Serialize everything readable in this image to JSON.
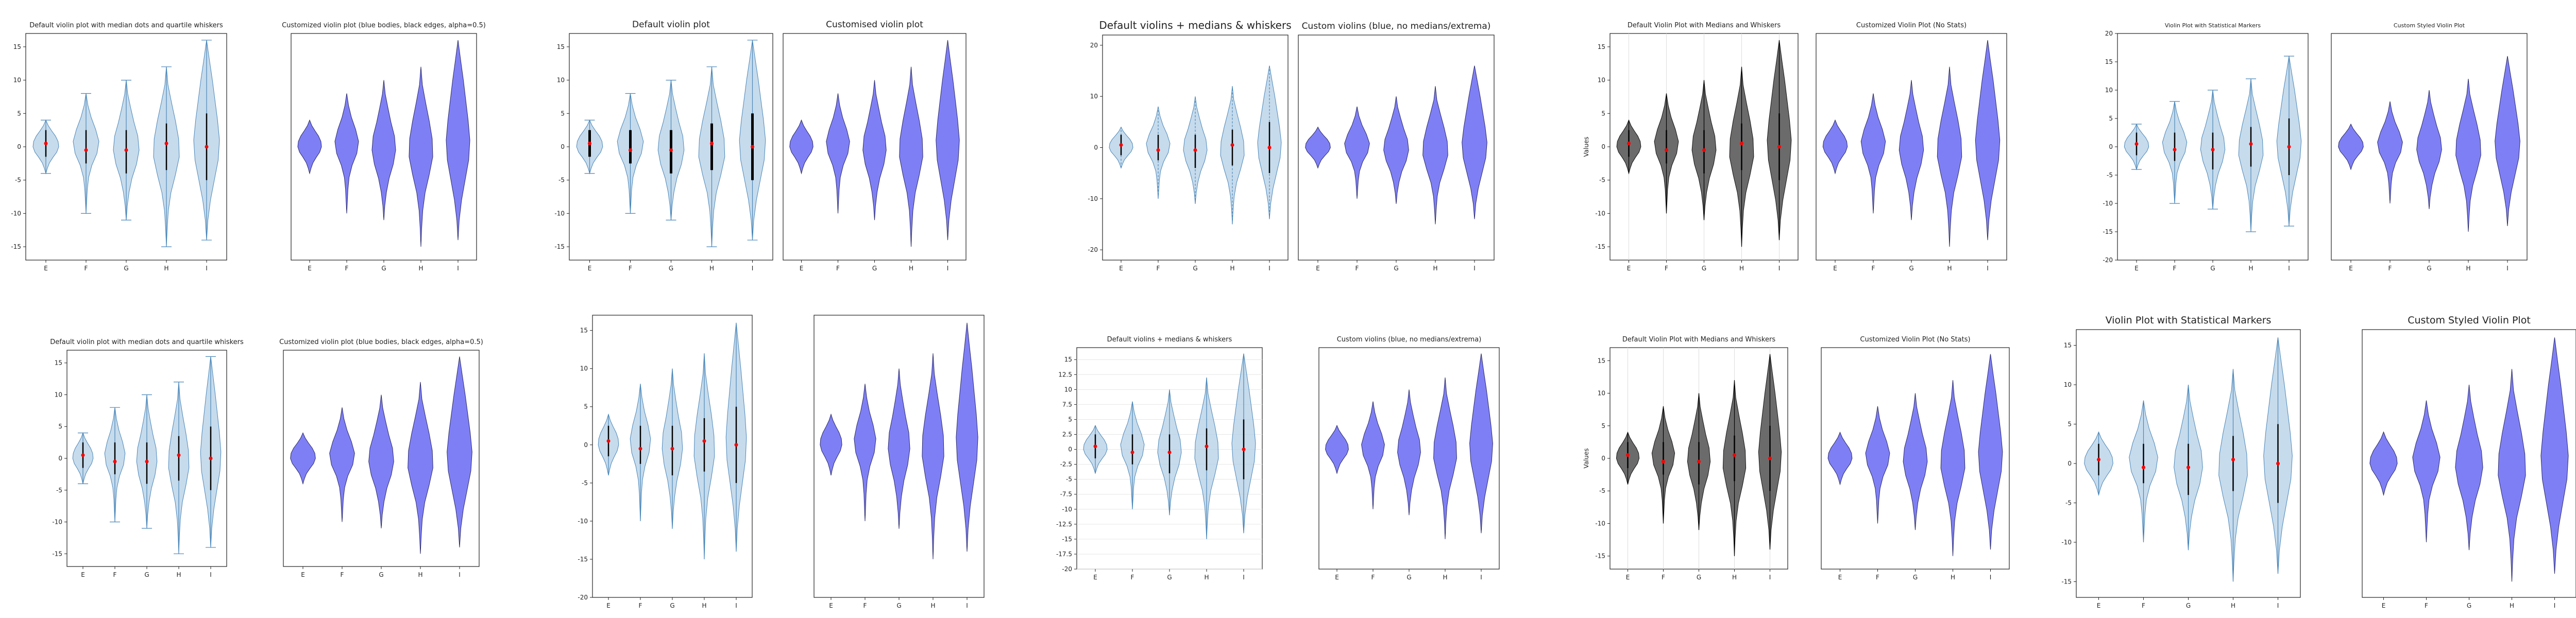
{
  "style": {
    "default_fill": "#b3cfe5",
    "default_edge": "#4a86b8",
    "custom_fill": "#7f7ff5",
    "custom_edge": "#2a2a6a",
    "dark_fill": "#6b6b6b",
    "median_color": "#ff0000",
    "whisker_color": "#000000"
  },
  "chart_data": [
    {
      "title": "Default violin plot with median dots and quartile whiskers",
      "type": "violin",
      "categories": [
        "E",
        "F",
        "G",
        "H",
        "I"
      ],
      "ylim": [
        -17,
        17
      ],
      "yticks": [
        -15,
        -10,
        -5,
        0,
        5,
        10,
        15
      ],
      "ylabel": ""
    },
    {
      "title": "Customized violin plot (blue bodies, black edges, alpha=0.5)",
      "type": "violin",
      "categories": [
        "E",
        "F",
        "G",
        "H",
        "I"
      ],
      "ylim": [
        -17,
        17
      ],
      "yticks": [],
      "ylabel": ""
    },
    {
      "title": "Default violin plot",
      "type": "violin",
      "categories": [
        "E",
        "F",
        "G",
        "H",
        "I"
      ],
      "ylim": [
        -17,
        17
      ],
      "yticks": [
        -15,
        -10,
        -5,
        0,
        5,
        10,
        15
      ],
      "ylabel": ""
    },
    {
      "title": "Customised violin plot",
      "type": "violin",
      "categories": [
        "E",
        "F",
        "G",
        "H",
        "I"
      ],
      "ylim": [
        -17,
        17
      ],
      "yticks": [],
      "ylabel": ""
    },
    {
      "title": "Default violins + medians & whiskers",
      "type": "violin",
      "categories": [
        "E",
        "F",
        "G",
        "H",
        "I"
      ],
      "ylim": [
        -22,
        22
      ],
      "yticks": [
        -20,
        -10,
        0,
        10,
        20
      ],
      "ylabel": ""
    },
    {
      "title": "Custom violins (blue, no medians/extrema)",
      "type": "violin",
      "categories": [
        "E",
        "F",
        "G",
        "H",
        "I"
      ],
      "ylim": [
        -22,
        22
      ],
      "yticks": [],
      "ylabel": ""
    },
    {
      "title": "Default Violin Plot with Medians and Whiskers",
      "type": "violin",
      "categories": [
        "E",
        "F",
        "G",
        "H",
        "I"
      ],
      "ylim": [
        -17,
        17
      ],
      "yticks": [
        -15,
        -10,
        -5,
        0,
        5,
        10,
        15
      ],
      "ylabel": "Values"
    },
    {
      "title": "Customized Violin Plot (No Stats)",
      "type": "violin",
      "categories": [
        "E",
        "F",
        "G",
        "H",
        "I"
      ],
      "ylim": [
        -17,
        17
      ],
      "yticks": [],
      "ylabel": ""
    },
    {
      "title": "Violin Plot with Statistical Markers",
      "type": "violin",
      "categories": [
        "E",
        "F",
        "G",
        "H",
        "I"
      ],
      "ylim": [
        -20,
        20
      ],
      "yticks": [
        -20,
        -15,
        -10,
        -5,
        0,
        5,
        10,
        15,
        20
      ],
      "ylabel": ""
    },
    {
      "title": "Custom Styled Violin Plot",
      "type": "violin",
      "categories": [
        "E",
        "F",
        "G",
        "H",
        "I"
      ],
      "ylim": [
        -20,
        20
      ],
      "yticks": [],
      "ylabel": ""
    },
    {
      "title": "Default violin plot with median dots and quartile whiskers",
      "type": "violin",
      "categories": [
        "E",
        "F",
        "G",
        "H",
        "I"
      ],
      "ylim": [
        -17,
        17
      ],
      "yticks": [
        -15,
        -10,
        -5,
        0,
        5,
        10,
        15
      ],
      "ylabel": ""
    },
    {
      "title": "Customized violin plot (blue bodies, black edges, alpha=0.5)",
      "type": "violin",
      "categories": [
        "E",
        "F",
        "G",
        "H",
        "I"
      ],
      "ylim": [
        -17,
        17
      ],
      "yticks": [],
      "ylabel": ""
    },
    {
      "title": "",
      "type": "violin",
      "categories": [
        "E",
        "F",
        "G",
        "H",
        "I"
      ],
      "ylim": [
        -20,
        17
      ],
      "yticks": [
        -20,
        -15,
        -10,
        -5,
        0,
        5,
        10,
        15
      ],
      "ylabel": ""
    },
    {
      "title": "",
      "type": "violin",
      "categories": [
        "E",
        "F",
        "G",
        "H",
        "I"
      ],
      "ylim": [
        -20,
        17
      ],
      "yticks": [],
      "ylabel": ""
    },
    {
      "title": "Default violins + medians & whiskers",
      "type": "violin",
      "categories": [
        "E",
        "F",
        "G",
        "H",
        "I"
      ],
      "ylim": [
        -20,
        17
      ],
      "yticks": [
        -20,
        -17.5,
        -15,
        -12.5,
        -10,
        -7.5,
        -5,
        -2.5,
        0,
        2.5,
        5,
        7.5,
        10,
        12.5,
        15
      ],
      "ylabel": ""
    },
    {
      "title": "Custom violins (blue, no medians/extrema)",
      "type": "violin",
      "categories": [
        "E",
        "F",
        "G",
        "H",
        "I"
      ],
      "ylim": [
        -20,
        17
      ],
      "yticks": [],
      "ylabel": ""
    },
    {
      "title": "Default Violin Plot with Medians and Whiskers",
      "type": "violin",
      "categories": [
        "E",
        "F",
        "G",
        "H",
        "I"
      ],
      "ylim": [
        -17,
        17
      ],
      "yticks": [
        -15,
        -10,
        -5,
        0,
        5,
        10,
        15
      ],
      "ylabel": "Values"
    },
    {
      "title": "Customized Violin Plot (No Stats)",
      "type": "violin",
      "categories": [
        "E",
        "F",
        "G",
        "H",
        "I"
      ],
      "ylim": [
        -17,
        17
      ],
      "yticks": [],
      "ylabel": ""
    },
    {
      "title": "Violin Plot with Statistical Markers",
      "type": "violin",
      "categories": [
        "E",
        "F",
        "G",
        "H",
        "I"
      ],
      "ylim": [
        -17,
        17
      ],
      "yticks": [
        -15,
        -10,
        -5,
        0,
        5,
        10,
        15
      ],
      "ylabel": ""
    },
    {
      "title": "Custom Styled Violin Plot",
      "type": "violin",
      "categories": [
        "E",
        "F",
        "G",
        "H",
        "I"
      ],
      "ylim": [
        -17,
        17
      ],
      "yticks": [],
      "ylabel": ""
    }
  ],
  "violin_shapes": {
    "E": {
      "min": -4,
      "max": 4,
      "median": 0.5,
      "q1": -1.5,
      "q3": 2.5,
      "peak": 1,
      "widths": [
        0.0,
        0.12,
        0.28,
        0.55,
        0.85,
        1.0,
        0.95,
        0.75,
        0.45,
        0.18,
        0.0
      ]
    },
    "F": {
      "min": -10,
      "max": 8,
      "median": -0.5,
      "q1": -2.5,
      "q3": 2.5,
      "peak": -1,
      "widths": [
        0.0,
        0.05,
        0.1,
        0.2,
        0.45,
        0.85,
        1.0,
        0.75,
        0.4,
        0.15,
        0.0
      ]
    },
    "G": {
      "min": -11,
      "max": 10,
      "median": -0.5,
      "q1": -4,
      "q3": 2.5,
      "peak": -1,
      "widths": [
        0.0,
        0.08,
        0.22,
        0.45,
        0.8,
        1.0,
        0.9,
        0.6,
        0.35,
        0.12,
        0.0
      ]
    },
    "H": {
      "min": -15,
      "max": 12,
      "median": 0.5,
      "q1": -3.5,
      "q3": 3.5,
      "peak": 0,
      "widths": [
        0.0,
        0.06,
        0.15,
        0.35,
        0.7,
        1.0,
        0.95,
        0.7,
        0.4,
        0.12,
        0.0
      ]
    },
    "I": {
      "min": -14,
      "max": 16,
      "median": 0,
      "q1": -5,
      "q3": 5,
      "peak": 0,
      "widths": [
        0.0,
        0.1,
        0.3,
        0.6,
        0.9,
        1.0,
        0.85,
        0.65,
        0.45,
        0.22,
        0.0
      ]
    }
  }
}
